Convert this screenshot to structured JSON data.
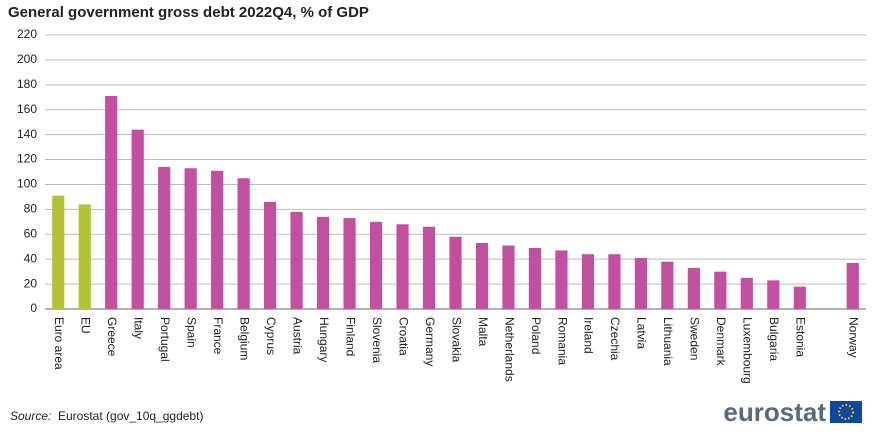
{
  "chart_data": {
    "type": "bar",
    "title": "General government gross debt 2022Q4, % of GDP",
    "categories": [
      "Euro area",
      "EU",
      "Greece",
      "Italy",
      "Portugal",
      "Spain",
      "France",
      "Belgium",
      "Cyprus",
      "Austria",
      "Hungary",
      "Finland",
      "Slovenia",
      "Croatia",
      "Germany",
      "Slovakia",
      "Malta",
      "Netherlands",
      "Poland",
      "Romania",
      "Ireland",
      "Czechia",
      "Latvia",
      "Lithuania",
      "Sweden",
      "Denmark",
      "Luxembourg",
      "Bulgaria",
      "Estonia",
      null,
      "Norway"
    ],
    "values": [
      91,
      84,
      171,
      144,
      114,
      113,
      111,
      105,
      86,
      78,
      74,
      73,
      70,
      68,
      66,
      58,
      53,
      51,
      49,
      47,
      44,
      44,
      41,
      38,
      33,
      30,
      25,
      23,
      18,
      null,
      37
    ],
    "colors": [
      "#b5c234",
      "#b5c234",
      "#c34fa0",
      "#c34fa0",
      "#c34fa0",
      "#c34fa0",
      "#c34fa0",
      "#c34fa0",
      "#c34fa0",
      "#c34fa0",
      "#c34fa0",
      "#c34fa0",
      "#c34fa0",
      "#c34fa0",
      "#c34fa0",
      "#c34fa0",
      "#c34fa0",
      "#c34fa0",
      "#c34fa0",
      "#c34fa0",
      "#c34fa0",
      "#c34fa0",
      "#c34fa0",
      "#c34fa0",
      "#c34fa0",
      "#c34fa0",
      "#c34fa0",
      "#c34fa0",
      "#c34fa0",
      null,
      "#c34fa0"
    ],
    "ylim": [
      0,
      220
    ],
    "yticks": [
      0,
      20,
      40,
      60,
      80,
      100,
      120,
      140,
      160,
      180,
      200,
      220
    ],
    "grid": true,
    "source_label": "Source:",
    "source": "Eurostat (gov_10q_ggdebt)",
    "logo": "eurostat"
  }
}
